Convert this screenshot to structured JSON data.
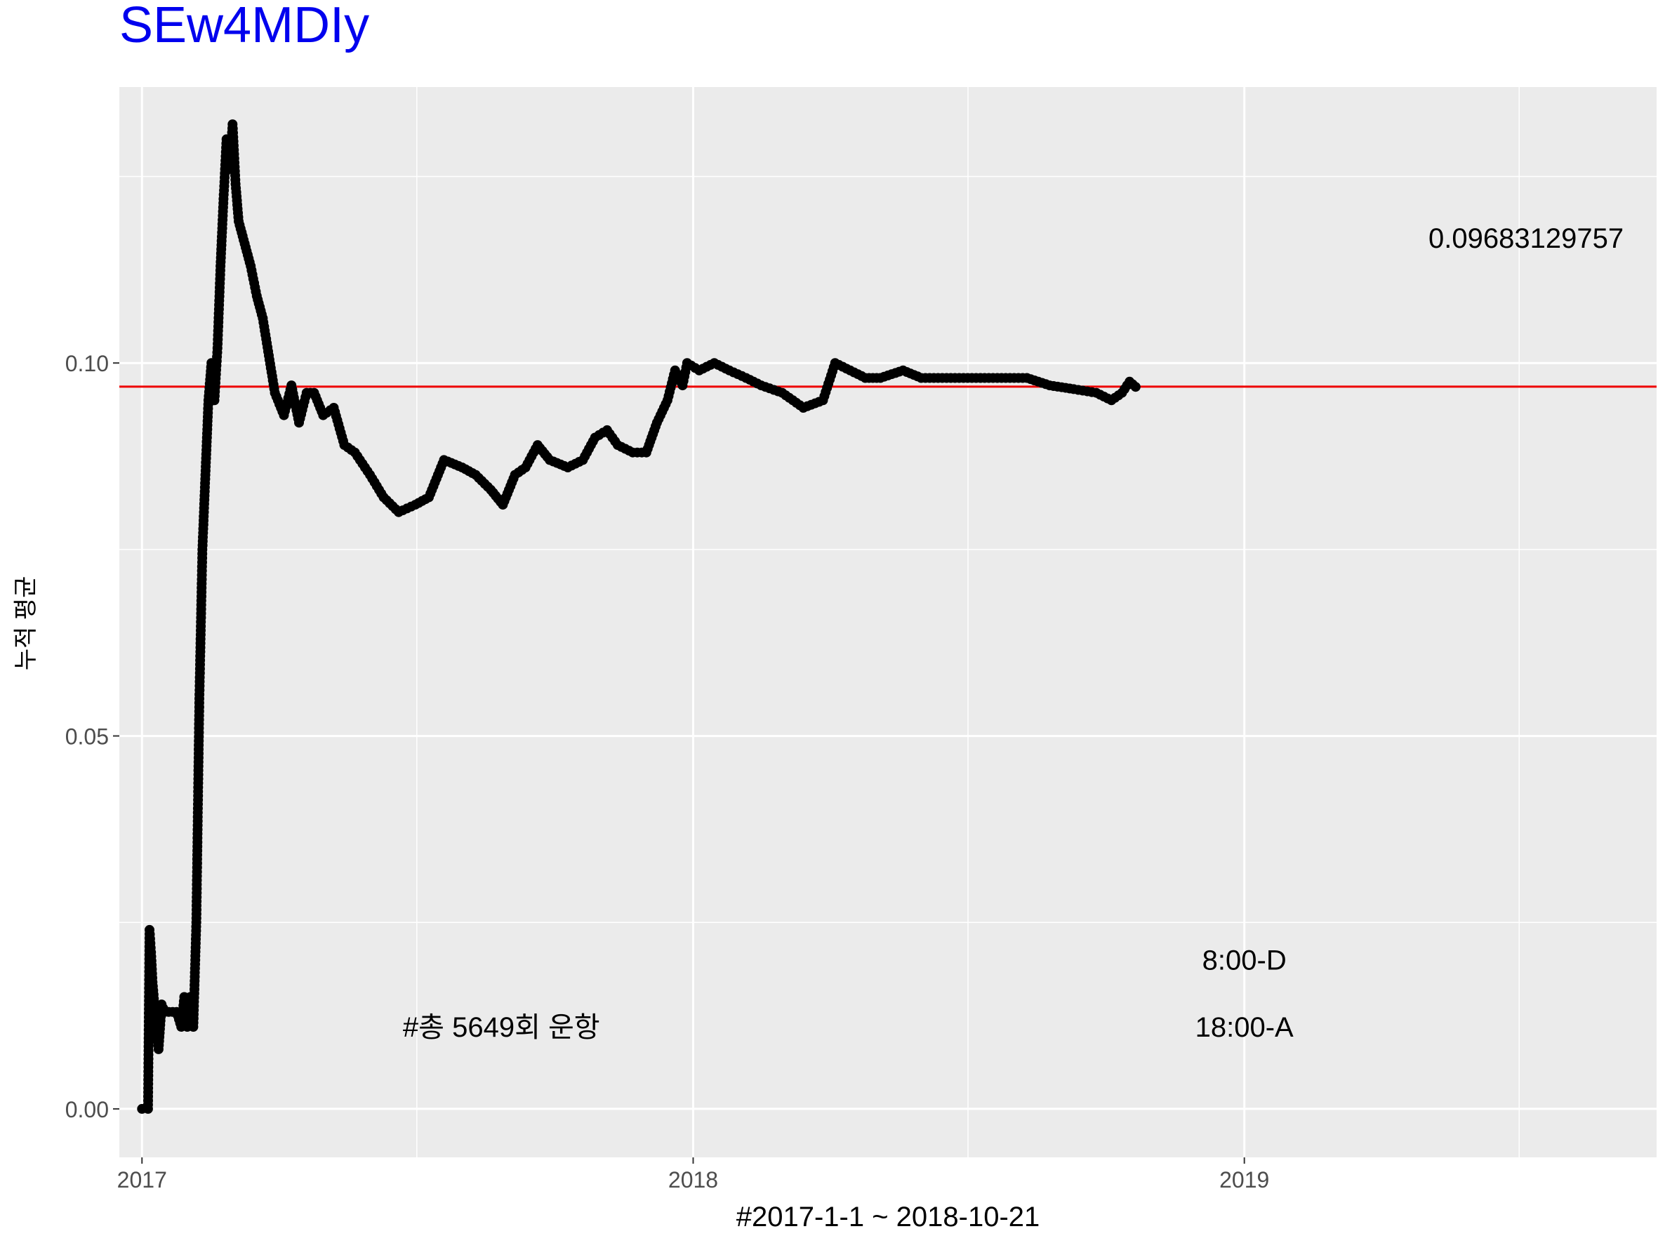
{
  "chart_data": {
    "type": "line",
    "title": "SEw4MDIy",
    "xlabel": "#2017-1-1 ~ 2018-10-21",
    "ylabel": "누적 평균",
    "xlim": [
      "2016-12-17",
      "2019-10-01"
    ],
    "ylim": [
      -0.0065,
      0.137
    ],
    "x_ticks": [
      {
        "value": "2017-01-01",
        "label": "2017"
      },
      {
        "value": "2018-01-01",
        "label": "2018"
      },
      {
        "value": "2019-01-01",
        "label": "2019"
      }
    ],
    "x_minor_ticks": [
      "2017-07-02",
      "2018-07-02",
      "2019-07-02"
    ],
    "y_ticks": [
      {
        "value": 0.0,
        "label": "0.00"
      },
      {
        "value": 0.05,
        "label": "0.05"
      },
      {
        "value": 0.1,
        "label": "0.10"
      }
    ],
    "y_minor_ticks": [
      0.025,
      0.075,
      0.125
    ],
    "grid": true,
    "hline": {
      "value": 0.09683129757,
      "label": "0.09683129757",
      "color": "#ee0000"
    },
    "annotations": [
      {
        "text": "#총 5649회 운항",
        "x": "2017-08-27",
        "y": 0.011,
        "color": "#ee0000"
      },
      {
        "text": "8:00-D",
        "x": "2019-01-01",
        "y": 0.02,
        "color": "#ee0000"
      },
      {
        "text": "18:00-A",
        "x": "2019-01-01",
        "y": 0.011,
        "color": "#0000ee"
      }
    ],
    "series": [
      {
        "color": "#000000",
        "points": [
          [
            "2017-01-01",
            0.0
          ],
          [
            "2017-01-05",
            0.0
          ],
          [
            "2017-01-06",
            0.024
          ],
          [
            "2017-01-07",
            0.021
          ],
          [
            "2017-01-08",
            0.017
          ],
          [
            "2017-01-10",
            0.012
          ],
          [
            "2017-01-12",
            0.008
          ],
          [
            "2017-01-14",
            0.014
          ],
          [
            "2017-01-16",
            0.013
          ],
          [
            "2017-01-24",
            0.013
          ],
          [
            "2017-01-27",
            0.011
          ],
          [
            "2017-01-29",
            0.015
          ],
          [
            "2017-01-31",
            0.011
          ],
          [
            "2017-02-02",
            0.015
          ],
          [
            "2017-02-04",
            0.011
          ],
          [
            "2017-02-06",
            0.025
          ],
          [
            "2017-02-08",
            0.055
          ],
          [
            "2017-02-10",
            0.075
          ],
          [
            "2017-02-12",
            0.085
          ],
          [
            "2017-02-14",
            0.095
          ],
          [
            "2017-02-16",
            0.1
          ],
          [
            "2017-02-18",
            0.095
          ],
          [
            "2017-02-20",
            0.102
          ],
          [
            "2017-02-22",
            0.113
          ],
          [
            "2017-02-24",
            0.122
          ],
          [
            "2017-02-26",
            0.13
          ],
          [
            "2017-02-28",
            0.126
          ],
          [
            "2017-03-02",
            0.132
          ],
          [
            "2017-03-04",
            0.124
          ],
          [
            "2017-03-06",
            0.119
          ],
          [
            "2017-03-10",
            0.116
          ],
          [
            "2017-03-14",
            0.113
          ],
          [
            "2017-03-18",
            0.109
          ],
          [
            "2017-03-22",
            0.106
          ],
          [
            "2017-03-26",
            0.101
          ],
          [
            "2017-03-30",
            0.096
          ],
          [
            "2017-04-05",
            0.093
          ],
          [
            "2017-04-10",
            0.097
          ],
          [
            "2017-04-15",
            0.092
          ],
          [
            "2017-04-20",
            0.096
          ],
          [
            "2017-04-25",
            0.096
          ],
          [
            "2017-05-01",
            0.093
          ],
          [
            "2017-05-08",
            0.094
          ],
          [
            "2017-05-15",
            0.089
          ],
          [
            "2017-05-22",
            0.088
          ],
          [
            "2017-06-01",
            0.085
          ],
          [
            "2017-06-10",
            0.082
          ],
          [
            "2017-06-20",
            0.08
          ],
          [
            "2017-07-01",
            0.081
          ],
          [
            "2017-07-10",
            0.082
          ],
          [
            "2017-07-20",
            0.087
          ],
          [
            "2017-08-01",
            0.086
          ],
          [
            "2017-08-10",
            0.085
          ],
          [
            "2017-08-20",
            0.083
          ],
          [
            "2017-08-28",
            0.081
          ],
          [
            "2017-09-05",
            0.085
          ],
          [
            "2017-09-12",
            0.086
          ],
          [
            "2017-09-20",
            0.089
          ],
          [
            "2017-09-28",
            0.087
          ],
          [
            "2017-10-10",
            0.086
          ],
          [
            "2017-10-20",
            0.087
          ],
          [
            "2017-10-28",
            0.09
          ],
          [
            "2017-11-05",
            0.091
          ],
          [
            "2017-11-12",
            0.089
          ],
          [
            "2017-11-22",
            0.088
          ],
          [
            "2017-12-01",
            0.088
          ],
          [
            "2017-12-08",
            0.092
          ],
          [
            "2017-12-15",
            0.095
          ],
          [
            "2017-12-20",
            0.099
          ],
          [
            "2017-12-25",
            0.097
          ],
          [
            "2017-12-28",
            0.1
          ],
          [
            "2018-01-05",
            0.099
          ],
          [
            "2018-01-15",
            0.1
          ],
          [
            "2018-01-25",
            0.099
          ],
          [
            "2018-02-05",
            0.098
          ],
          [
            "2018-02-15",
            0.097
          ],
          [
            "2018-03-01",
            0.096
          ],
          [
            "2018-03-15",
            0.094
          ],
          [
            "2018-03-28",
            0.095
          ],
          [
            "2018-04-05",
            0.1
          ],
          [
            "2018-04-15",
            0.099
          ],
          [
            "2018-04-25",
            0.098
          ],
          [
            "2018-05-05",
            0.098
          ],
          [
            "2018-05-20",
            0.099
          ],
          [
            "2018-06-01",
            0.098
          ],
          [
            "2018-06-15",
            0.098
          ],
          [
            "2018-08-10",
            0.098
          ],
          [
            "2018-08-25",
            0.097
          ],
          [
            "2018-09-10",
            0.0965
          ],
          [
            "2018-09-25",
            0.096
          ],
          [
            "2018-10-05",
            0.095
          ],
          [
            "2018-10-12",
            0.096
          ],
          [
            "2018-10-17",
            0.0975
          ],
          [
            "2018-10-21",
            0.0968
          ]
        ]
      }
    ]
  }
}
